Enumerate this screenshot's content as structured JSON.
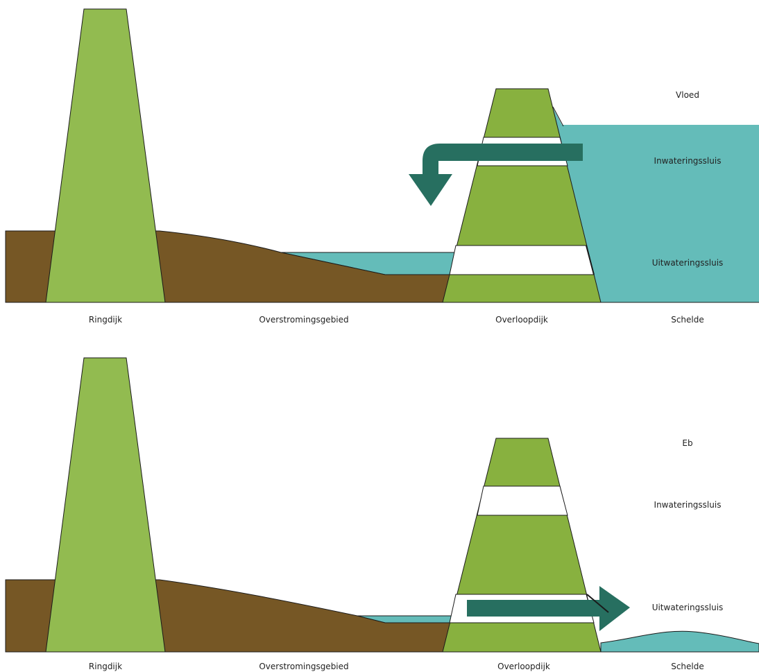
{
  "colors": {
    "ground": "#765725",
    "ringdijk": "#92bb50",
    "overloopdijk": "#88b13f",
    "water": "#64bcb9",
    "arrow": "#276f60",
    "sluice": "#ffffff"
  },
  "panels": [
    {
      "id": "flood",
      "state_label": "Vloed",
      "inlet_label": "Inwateringssluis",
      "outlet_label": "Uitwateringssluis",
      "flow_direction": "inward",
      "bottom_labels": [
        "Ringdijk",
        "Overstromingsgebied",
        "Overloopdijk",
        "Schelde"
      ]
    },
    {
      "id": "ebb",
      "state_label": "Eb",
      "inlet_label": "Inwateringssluis",
      "outlet_label": "Uitwateringssluis",
      "flow_direction": "outward",
      "bottom_labels": [
        "Ringdijk",
        "Overstromingsgebied",
        "Overloopdijk",
        "Schelde"
      ]
    }
  ]
}
